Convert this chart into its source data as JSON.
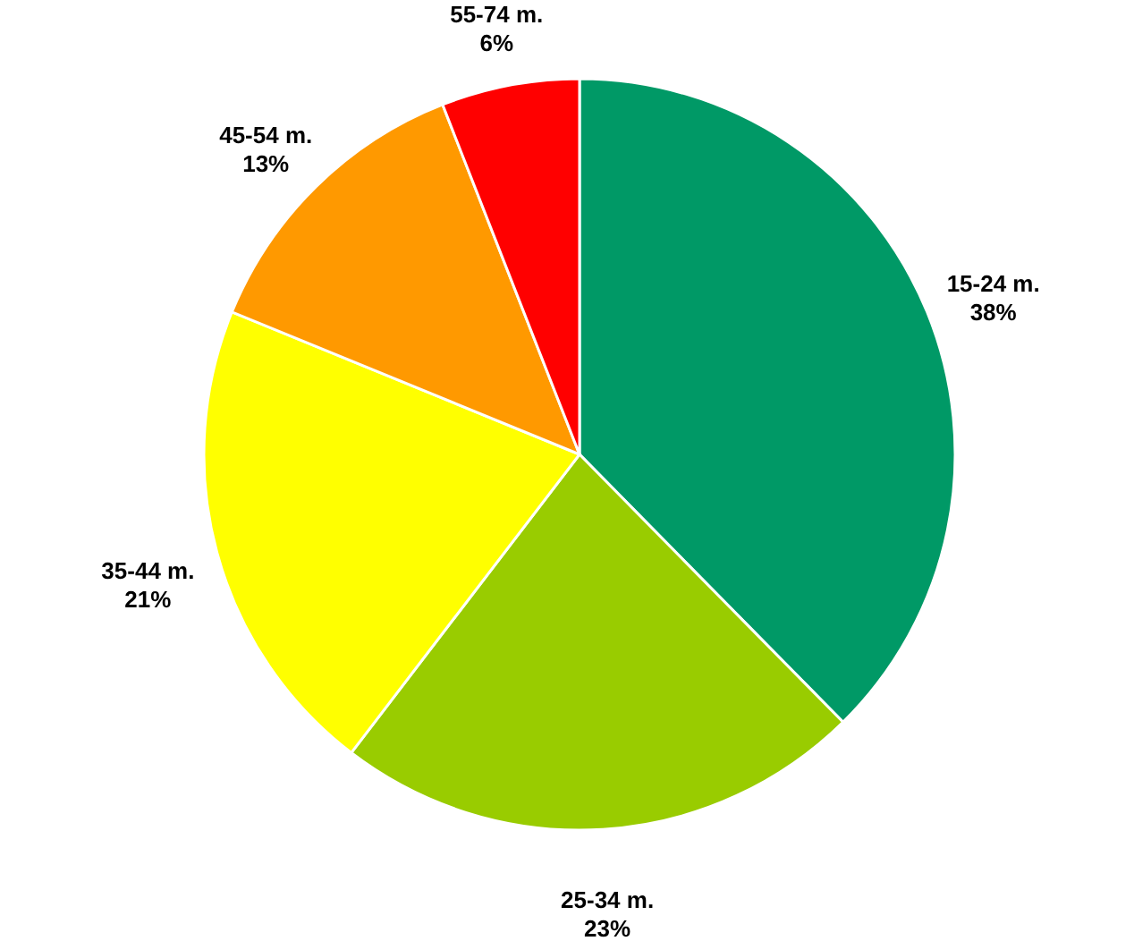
{
  "chart_data": {
    "type": "pie",
    "categories": [
      "15-24 m.",
      "25-34 m.",
      "35-44 m.",
      "45-54 m.",
      "55-74 m."
    ],
    "values": [
      38,
      23,
      21,
      13,
      6
    ],
    "colors": [
      "#009966",
      "#99cc00",
      "#ffff00",
      "#ff9900",
      "#ff0000"
    ],
    "value_labels": [
      "38%",
      "23%",
      "21%",
      "13%",
      "6%"
    ],
    "legend": false
  }
}
